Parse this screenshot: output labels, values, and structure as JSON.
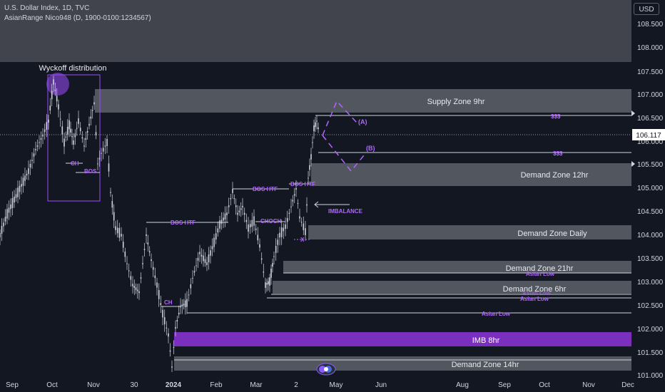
{
  "header": {
    "line1": "U.S. Dollar Index, 1D, TVC",
    "line2": "AsianRange Nico948 (D, 1900-0100:1234567)"
  },
  "currency_button": "USD",
  "price_axis": {
    "ticks": [
      "108.500",
      "108.000",
      "107.500",
      "107.000",
      "106.500",
      "106.000",
      "105.500",
      "105.000",
      "104.500",
      "104.000",
      "103.500",
      "103.000",
      "102.500",
      "102.000",
      "101.500",
      "101.000"
    ],
    "current_price": "106.117"
  },
  "time_axis": {
    "ticks": [
      {
        "label": "Sep",
        "bold": false
      },
      {
        "label": "Oct",
        "bold": false
      },
      {
        "label": "Nov",
        "bold": false
      },
      {
        "label": "30",
        "bold": false
      },
      {
        "label": "2024",
        "bold": true
      },
      {
        "label": "Feb",
        "bold": false
      },
      {
        "label": "Mar",
        "bold": false
      },
      {
        "label": "2",
        "bold": false
      },
      {
        "label": "May",
        "bold": false
      },
      {
        "label": "Jun",
        "bold": false
      },
      {
        "label": "Aug",
        "bold": false
      },
      {
        "label": "Sep",
        "bold": false
      },
      {
        "label": "Oct",
        "bold": false
      },
      {
        "label": "Nov",
        "bold": false
      },
      {
        "label": "Dec",
        "bold": false
      }
    ]
  },
  "zones": {
    "supply_9hr": "Supply Zone 9hr",
    "demand_12hr": "Demand Zone 12hr",
    "demand_daily": "Demand Zone Daily",
    "demand_21hr": "Demand Zone 21hr",
    "demand_6hr": "Demand Zone 6hr",
    "imb_8hr": "IMB 8hr",
    "demand_14hr": "Demand Zone 14hr"
  },
  "annotations": {
    "wyckoff": "Wyckoff distribution",
    "ch_top": "CH",
    "bos_top": "BOS",
    "bos_htf_1": "BOS HTF",
    "bos_htf_2": "BOS HTF",
    "bos_htf_3": "BOS HTF",
    "choch": "CHOCH",
    "ch_low": "CH",
    "imbalance": "IMBALANCE",
    "x_mark": "X",
    "liq_upper": "$$$",
    "liq_lower": "$$$",
    "path_a": "(A)",
    "path_b": "(B)",
    "asian_low_1": "Asian Low",
    "asian_low_2": "Asian Low",
    "asian_low_3": "Asian Low",
    "asian_low_4": "Asian Low"
  },
  "colors": {
    "background": "#131722",
    "candle": "#d1d4dc",
    "zone": "#4e515a",
    "imb": "#7b2fbe",
    "annotation": "#b266ff",
    "axis_text": "#d1d4dc"
  },
  "icons": {
    "wyckoff_circle": "purple-circle-highlight",
    "currency_label": "currency-label",
    "imbalance_arrow": "left-arrow-icon",
    "logo": "indicator-logo-icon",
    "scroll_arrow": "right-triangle-icon"
  }
}
